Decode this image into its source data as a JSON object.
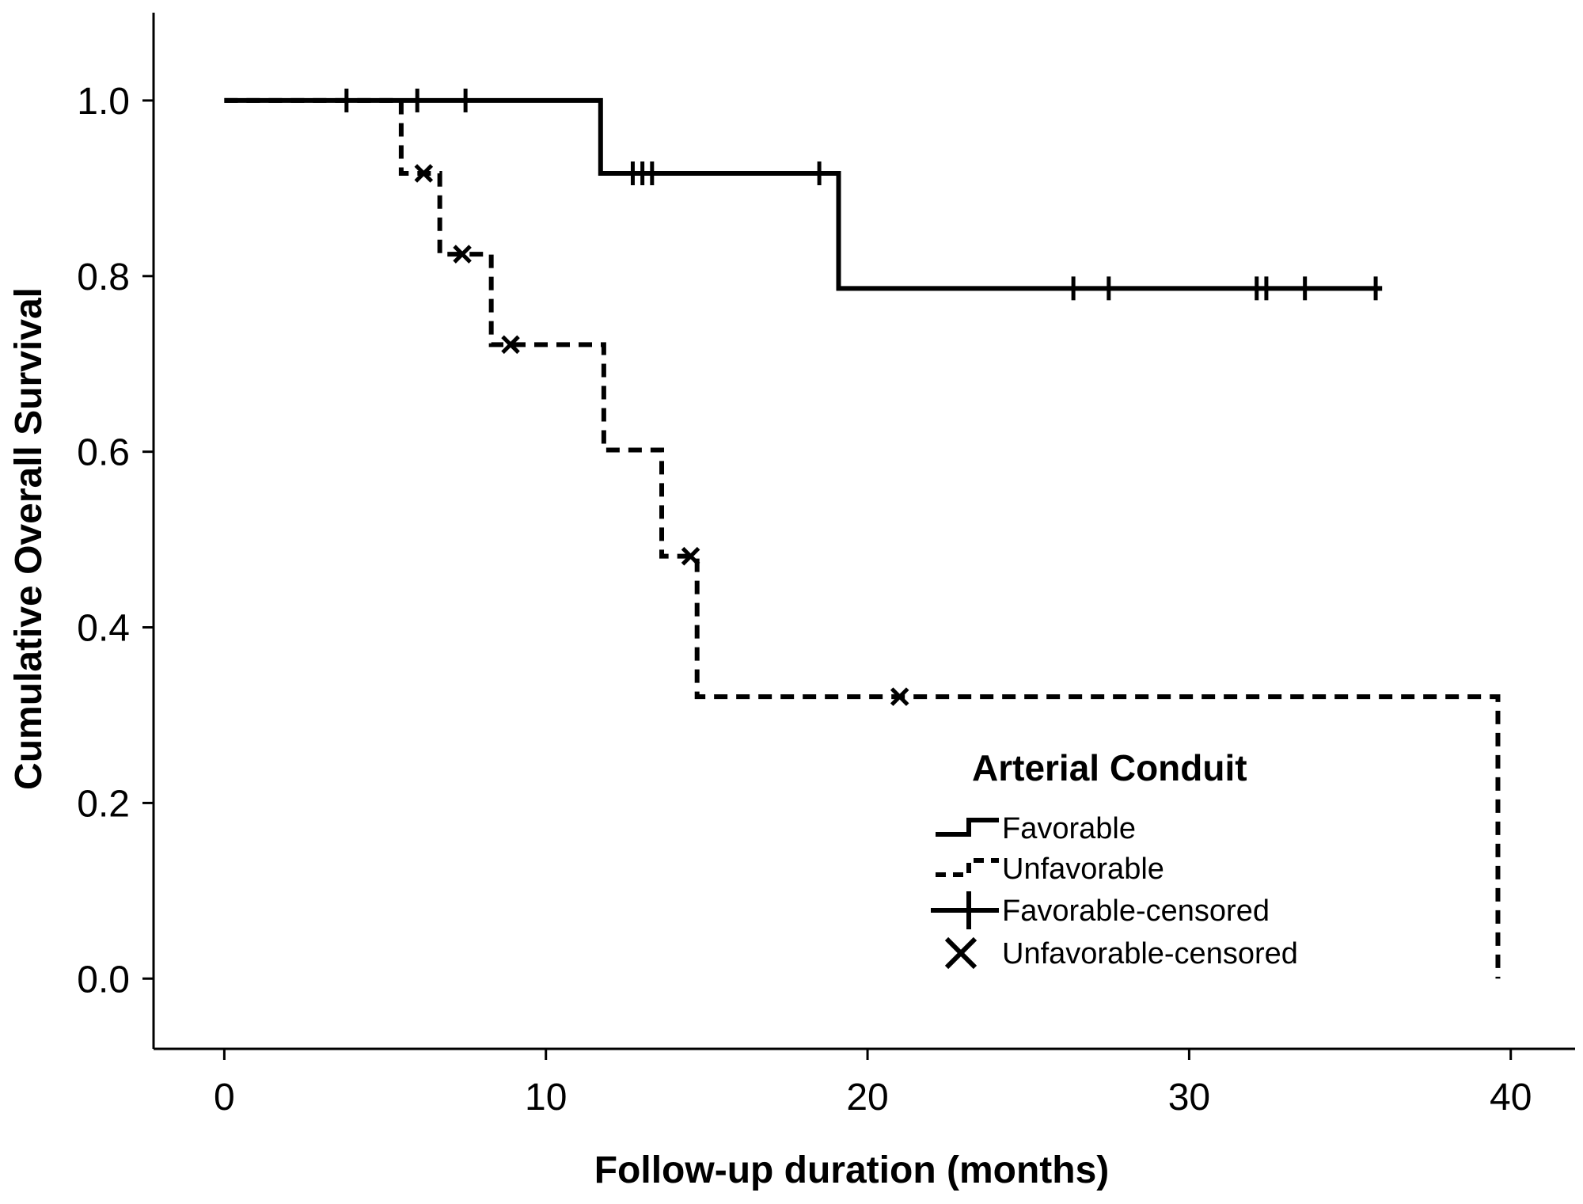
{
  "chart_data": {
    "type": "line",
    "subtype": "kaplan-meier step curve",
    "xlabel": "Follow-up duration (months)",
    "ylabel": "Cumulative Overall Survival",
    "xlim": [
      -2.2,
      42
    ],
    "ylim": [
      -0.08,
      1.1
    ],
    "xticks": [
      0,
      10,
      20,
      30,
      40
    ],
    "xtick_labels": [
      "0",
      "10",
      "20",
      "30",
      "40"
    ],
    "yticks": [
      0.0,
      0.2,
      0.4,
      0.6,
      0.8,
      1.0
    ],
    "ytick_labels": [
      "0.0",
      "0.2",
      "0.4",
      "0.6",
      "0.8",
      "1.0"
    ],
    "grid": false,
    "legend": {
      "title": "Arterial Conduit",
      "position": "lower-right",
      "entries": [
        "Favorable",
        "Unfavorable",
        "Favorable-censored",
        "Unfavorable-censored"
      ]
    },
    "series": [
      {
        "name": "Favorable",
        "style": "solid",
        "steps": [
          [
            0,
            1.0
          ],
          [
            11.7,
            0.917
          ],
          [
            19.1,
            0.786
          ],
          [
            36,
            0.786
          ]
        ],
        "censored_label": "Favorable-censored",
        "censored": [
          [
            3.8,
            1.0
          ],
          [
            6.0,
            1.0
          ],
          [
            7.5,
            1.0
          ],
          [
            12.7,
            0.917
          ],
          [
            13.0,
            0.917
          ],
          [
            13.3,
            0.917
          ],
          [
            18.5,
            0.917
          ],
          [
            26.4,
            0.786
          ],
          [
            27.5,
            0.786
          ],
          [
            32.1,
            0.786
          ],
          [
            32.4,
            0.786
          ],
          [
            33.6,
            0.786
          ],
          [
            35.8,
            0.786
          ]
        ]
      },
      {
        "name": "Unfavorable",
        "style": "dashed",
        "steps": [
          [
            0,
            1.0
          ],
          [
            5.5,
            0.917
          ],
          [
            6.7,
            0.825
          ],
          [
            8.3,
            0.722
          ],
          [
            11.8,
            0.602
          ],
          [
            13.6,
            0.481
          ],
          [
            14.7,
            0.321
          ],
          [
            39.6,
            0.0
          ]
        ],
        "censored_label": "Unfavorable-censored",
        "censored": [
          [
            6.2,
            0.917
          ],
          [
            7.4,
            0.825
          ],
          [
            8.9,
            0.722
          ],
          [
            14.5,
            0.481
          ],
          [
            21.0,
            0.321
          ]
        ]
      }
    ]
  }
}
